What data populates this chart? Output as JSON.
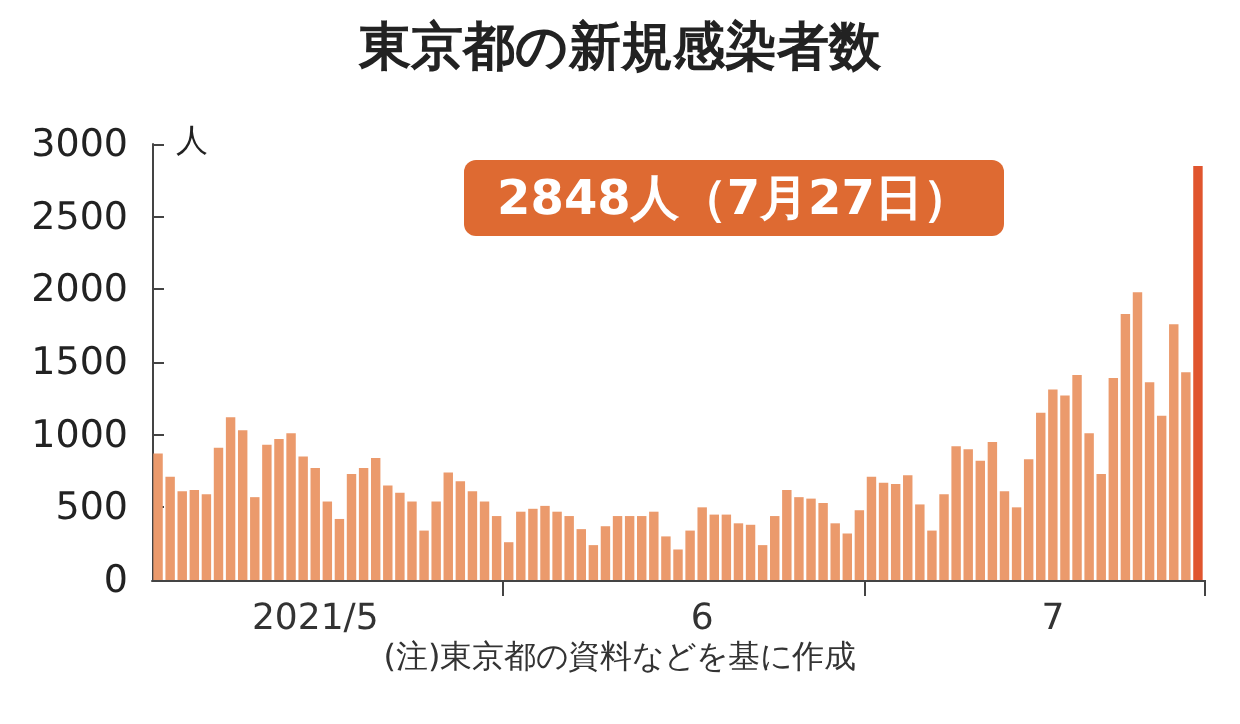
{
  "chart_data": {
    "type": "bar",
    "title": "東京都の新規感染者数",
    "ylabel": "人",
    "annotations": [
      "2848人（7月27日）",
      "(注)東京都の資料などを基に作成"
    ],
    "categories": [
      null,
      null,
      null,
      null,
      null,
      null,
      null,
      null,
      null,
      null,
      null,
      null,
      null,
      "2021/5",
      null,
      null,
      null,
      null,
      null,
      null,
      null,
      null,
      null,
      null,
      null,
      null,
      null,
      null,
      null,
      null,
      null,
      null,
      null,
      null,
      null,
      null,
      null,
      null,
      null,
      null,
      null,
      null,
      null,
      null,
      null,
      "6",
      null,
      null,
      null,
      null,
      null,
      null,
      null,
      null,
      null,
      null,
      null,
      null,
      null,
      null,
      null,
      null,
      null,
      null,
      null,
      null,
      null,
      null,
      null,
      null,
      null,
      null,
      null,
      null,
      "7",
      null,
      null,
      null,
      null,
      null,
      null,
      null,
      null,
      null,
      null,
      null,
      null
    ],
    "values": [
      870,
      710,
      610,
      620,
      590,
      910,
      1120,
      1030,
      570,
      930,
      970,
      1010,
      850,
      770,
      540,
      420,
      730,
      770,
      840,
      650,
      600,
      540,
      340,
      540,
      740,
      680,
      610,
      540,
      440,
      260,
      470,
      490,
      510,
      470,
      440,
      350,
      240,
      370,
      440,
      440,
      440,
      470,
      300,
      210,
      340,
      500,
      450,
      450,
      390,
      380,
      240,
      440,
      620,
      570,
      560,
      530,
      390,
      320,
      480,
      710,
      670,
      660,
      720,
      520,
      340,
      590,
      920,
      900,
      820,
      950,
      610,
      500,
      830,
      1150,
      1310,
      1270,
      1410,
      1010,
      730,
      1390,
      1830,
      1980,
      1360,
      1130,
      1760,
      1430,
      2848
    ],
    "colors": [
      "#eb9a6c",
      "#eb9a6c",
      "#eb9a6c",
      "#eb9a6c",
      "#eb9a6c",
      "#eb9a6c",
      "#eb9a6c",
      "#eb9a6c",
      "#eb9a6c",
      "#eb9a6c",
      "#eb9a6c",
      "#eb9a6c",
      "#eb9a6c",
      "#eb9a6c",
      "#eb9a6c",
      "#eb9a6c",
      "#eb9a6c",
      "#eb9a6c",
      "#eb9a6c",
      "#eb9a6c",
      "#eb9a6c",
      "#eb9a6c",
      "#eb9a6c",
      "#eb9a6c",
      "#eb9a6c",
      "#eb9a6c",
      "#eb9a6c",
      "#eb9a6c",
      "#eb9a6c",
      "#eb9a6c",
      "#eb9a6c",
      "#eb9a6c",
      "#eb9a6c",
      "#eb9a6c",
      "#eb9a6c",
      "#eb9a6c",
      "#eb9a6c",
      "#eb9a6c",
      "#eb9a6c",
      "#eb9a6c",
      "#eb9a6c",
      "#eb9a6c",
      "#eb9a6c",
      "#eb9a6c",
      "#eb9a6c",
      "#eb9a6c",
      "#eb9a6c",
      "#eb9a6c",
      "#eb9a6c",
      "#eb9a6c",
      "#eb9a6c",
      "#eb9a6c",
      "#eb9a6c",
      "#eb9a6c",
      "#eb9a6c",
      "#eb9a6c",
      "#eb9a6c",
      "#eb9a6c",
      "#eb9a6c",
      "#eb9a6c",
      "#eb9a6c",
      "#eb9a6c",
      "#eb9a6c",
      "#eb9a6c",
      "#eb9a6c",
      "#eb9a6c",
      "#eb9a6c",
      "#eb9a6c",
      "#eb9a6c",
      "#eb9a6c",
      "#eb9a6c",
      "#eb9a6c",
      "#eb9a6c",
      "#eb9a6c",
      "#eb9a6c",
      "#eb9a6c",
      "#eb9a6c",
      "#eb9a6c",
      "#eb9a6c",
      "#eb9a6c",
      "#eb9a6c",
      "#eb9a6c",
      "#eb9a6c",
      "#eb9a6c",
      "#eb9a6c",
      "#eb9a6c",
      "#e0552e"
    ],
    "ylim": [
      0,
      3000
    ],
    "yticks": [
      0,
      500,
      1000,
      1500,
      2000,
      2500,
      3000
    ],
    "grid": false
  }
}
